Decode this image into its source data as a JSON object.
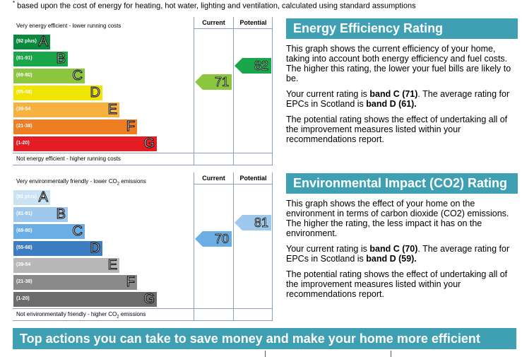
{
  "footnote": {
    "marker": "*",
    "text": " based upon the cost of energy for heating, hot water, lighting and ventilation, calculated using standard assumptions"
  },
  "energy_chart": {
    "col_current": "Current",
    "col_potential": "Potential",
    "top_label": "Very energy efficient - lower running costs",
    "bottom_label": "Not energy efficient - higher running costs",
    "bands": [
      {
        "range": "(92 plus)",
        "letter": "A",
        "color": "#0a8a3c"
      },
      {
        "range": "(81-91)",
        "letter": "B",
        "color": "#1aa74b"
      },
      {
        "range": "(69-80)",
        "letter": "C",
        "color": "#8cc63f"
      },
      {
        "range": "(55-68)",
        "letter": "D",
        "color": "#f0e500"
      },
      {
        "range": "(39-54",
        "letter": "E",
        "color": "#f6b13f"
      },
      {
        "range": "(21-38)",
        "letter": "F",
        "color": "#ef7d22"
      },
      {
        "range": "(1-20)",
        "letter": "G",
        "color": "#e31d23"
      }
    ],
    "current": {
      "value": "71",
      "color": "#8cc63f"
    },
    "potential": {
      "value": "82",
      "color": "#1aa74b"
    }
  },
  "co2_chart": {
    "col_current": "Current",
    "col_potential": "Potential",
    "top_label_pre": "Very environmentally friendly - lower CO",
    "top_label_sub": "2",
    "top_label_post": " emissions",
    "bottom_label_pre": "Not environmentally friendly - higher CO",
    "bottom_label_sub": "2",
    "bottom_label_post": " emissions",
    "bands": [
      {
        "range": "(92 plus)",
        "letter": "A",
        "color": "#c9e3f5"
      },
      {
        "range": "(81-91)",
        "letter": "B",
        "color": "#9ec9ec"
      },
      {
        "range": "(69-80)",
        "letter": "C",
        "color": "#6aaee3"
      },
      {
        "range": "(55-68)",
        "letter": "D",
        "color": "#3d7ec2"
      },
      {
        "range": "(39-54",
        "letter": "E",
        "color": "#b8b8b8"
      },
      {
        "range": "(21-38)",
        "letter": "F",
        "color": "#8a8a8a"
      },
      {
        "range": "(1-20)",
        "letter": "G",
        "color": "#6c6c6c"
      }
    ],
    "current": {
      "value": "70",
      "color": "#6aaee3"
    },
    "potential": {
      "value": "81",
      "color": "#9ec9ec"
    }
  },
  "energy_panel": {
    "title": "Energy Efficiency Rating",
    "p1": "This graph shows the current efficiency of your home, taking into account both energy efficiency and fuel costs. The higher this rating, the lower your fuel bills are likely to be.",
    "p2_pre": "Your current rating is ",
    "p2_bold1": "band C (71)",
    "p2_mid": ". The average rating for EPCs in Scotland is ",
    "p2_bold2": "band D (61).",
    "p3": "The potential rating shows the effect of undertaking all of the improvement measures listed within your recommendations report."
  },
  "co2_panel": {
    "title": "Environmental Impact (CO2) Rating",
    "p1": "This graph shows the effect of your home on the environment in terms of carbon dioxide (CO2) emissions. The higher the rating, the less impact it has on the environment.",
    "p2_pre": "Your current rating is ",
    "p2_bold1": "band C (70)",
    "p2_mid": ". The average rating for EPCs in Scotland is ",
    "p2_bold2": "band D (59).",
    "p3": "The potential rating shows the effect of undertaking all of the improvement measures listed within your recommendations report."
  },
  "bottom_banner": "Top actions you can take to save money and make your home more efficient"
}
